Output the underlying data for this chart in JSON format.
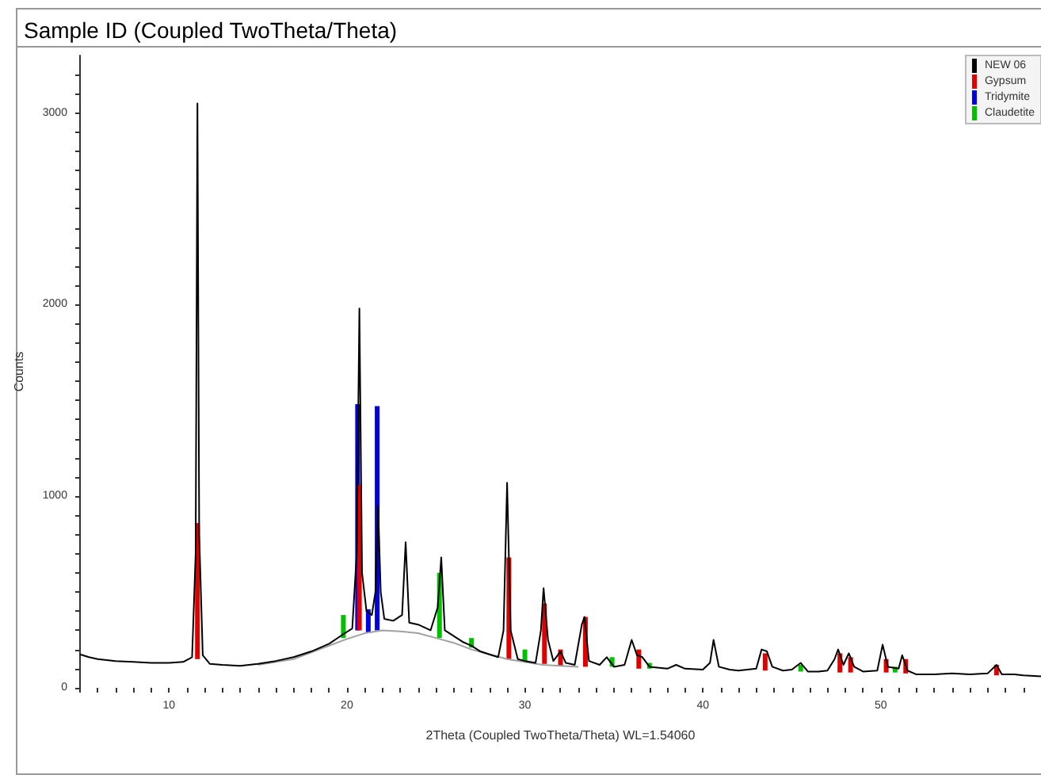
{
  "chart_data": {
    "type": "line",
    "title": "Sample ID (Coupled TwoTheta/Theta)",
    "xlabel": "2Theta (Coupled TwoTheta/Theta) WL=1.54060",
    "ylabel": "Counts",
    "xlim": [
      5,
      59
    ],
    "xticks": [
      {
        "value": 5,
        "label": null
      },
      {
        "value": 6,
        "label": null
      },
      {
        "value": 7,
        "label": null
      },
      {
        "value": 8,
        "label": null
      },
      {
        "value": 9,
        "label": null
      },
      10,
      {
        "value": 11,
        "label": null
      },
      {
        "value": 12,
        "label": null
      },
      {
        "value": 13,
        "label": null
      },
      {
        "value": 14,
        "label": null
      },
      {
        "value": 15,
        "label": null
      },
      {
        "value": 16,
        "label": null
      },
      {
        "value": 17,
        "label": null
      },
      {
        "value": 18,
        "label": null
      },
      {
        "value": 19,
        "label": null
      },
      20,
      {
        "value": 21,
        "label": null
      },
      {
        "value": 22,
        "label": null
      },
      {
        "value": 23,
        "label": null
      },
      {
        "value": 24,
        "label": null
      },
      {
        "value": 25,
        "label": null
      },
      {
        "value": 26,
        "label": null
      },
      {
        "value": 27,
        "label": null
      },
      {
        "value": 28,
        "label": null
      },
      {
        "value": 29,
        "label": null
      },
      30,
      {
        "value": 31,
        "label": null
      },
      {
        "value": 32,
        "label": null
      },
      {
        "value": 33,
        "label": null
      },
      {
        "value": 34,
        "label": null
      },
      {
        "value": 35,
        "label": null
      },
      {
        "value": 36,
        "label": null
      },
      {
        "value": 37,
        "label": null
      },
      {
        "value": 38,
        "label": null
      },
      {
        "value": 39,
        "label": null
      },
      40,
      {
        "value": 41,
        "label": null
      },
      {
        "value": 42,
        "label": null
      },
      {
        "value": 43,
        "label": null
      },
      {
        "value": 44,
        "label": null
      },
      {
        "value": 45,
        "label": null
      },
      {
        "value": 46,
        "label": null
      },
      {
        "value": 47,
        "label": null
      },
      {
        "value": 48,
        "label": null
      },
      {
        "value": 49,
        "label": null
      },
      50,
      {
        "value": 51,
        "label": null
      },
      {
        "value": 52,
        "label": null
      },
      {
        "value": 53,
        "label": null
      },
      {
        "value": 54,
        "label": null
      },
      {
        "value": 55,
        "label": null
      },
      {
        "value": 56,
        "label": null
      },
      {
        "value": 57,
        "label": null
      },
      {
        "value": 58,
        "label": null
      }
    ],
    "ylim": [
      0,
      3300
    ],
    "yticks": [
      0,
      {
        "value": 100,
        "label": null
      },
      {
        "value": 200,
        "label": null
      },
      {
        "value": 300,
        "label": null
      },
      {
        "value": 400,
        "label": null
      },
      {
        "value": 500,
        "label": null
      },
      {
        "value": 600,
        "label": null
      },
      {
        "value": 700,
        "label": null
      },
      {
        "value": 800,
        "label": null
      },
      {
        "value": 900,
        "label": null
      },
      1000,
      {
        "value": 1100,
        "label": null
      },
      {
        "value": 1200,
        "label": null
      },
      {
        "value": 1300,
        "label": null
      },
      {
        "value": 1400,
        "label": null
      },
      {
        "value": 1500,
        "label": null
      },
      {
        "value": 1600,
        "label": null
      },
      {
        "value": 1700,
        "label": null
      },
      {
        "value": 1800,
        "label": null
      },
      {
        "value": 1900,
        "label": null
      },
      2000,
      {
        "value": 2100,
        "label": null
      },
      {
        "value": 2200,
        "label": null
      },
      {
        "value": 2300,
        "label": null
      },
      {
        "value": 2400,
        "label": null
      },
      {
        "value": 2500,
        "label": null
      },
      {
        "value": 2600,
        "label": null
      },
      {
        "value": 2700,
        "label": null
      },
      {
        "value": 2800,
        "label": null
      },
      {
        "value": 2900,
        "label": null
      },
      3000,
      {
        "value": 3100,
        "label": null
      },
      {
        "value": 3200,
        "label": null
      }
    ],
    "grid": false,
    "legend": "top right",
    "marker": "none",
    "series": [
      {
        "color": "#a0a0a0",
        "x": [
          15,
          17,
          19,
          20,
          21,
          22,
          23,
          24,
          25,
          26,
          27,
          28,
          29,
          31,
          33
        ],
        "values": [
          120,
          150,
          220,
          255,
          285,
          300,
          295,
          285,
          260,
          235,
          200,
          175,
          150,
          120,
          110
        ]
      },
      {
        "type": "bar",
        "name": "Gypsum",
        "color": "#e00000",
        "x": [
          11.6,
          20.7,
          29.1,
          31.1,
          32.0,
          33.4,
          36.4,
          43.5,
          47.7,
          48.3,
          50.3,
          51.4,
          56.5
        ],
        "base": [
          150,
          300,
          150,
          125,
          115,
          110,
          100,
          90,
          80,
          80,
          80,
          75,
          65
        ],
        "values": [
          710,
          760,
          530,
          315,
          85,
          260,
          100,
          90,
          100,
          80,
          70,
          75,
          55
        ]
      },
      {
        "type": "bar",
        "name": "Tridymite",
        "color": "#0000e0",
        "x": [
          20.6,
          21.2,
          21.7
        ],
        "base": [
          300,
          290,
          300
        ],
        "values": [
          1180,
          120,
          1170
        ]
      },
      {
        "type": "bar",
        "name": "Claudetite",
        "color": "#00c000",
        "x": [
          19.8,
          25.2,
          27.0,
          30.0,
          34.9,
          37.0,
          45.5,
          50.8
        ],
        "base": [
          260,
          260,
          210,
          140,
          110,
          100,
          85,
          80
        ],
        "values": [
          120,
          340,
          50,
          60,
          50,
          30,
          35,
          30
        ]
      },
      {
        "type": "line",
        "name": "NEW 06",
        "color": "#000000",
        "x": [
          5,
          5.5,
          6,
          6.5,
          7,
          8,
          9,
          10,
          10.8,
          11.3,
          11.5,
          11.6,
          11.7,
          11.9,
          12.3,
          13,
          14,
          15,
          16,
          17,
          18,
          19,
          19.8,
          20.3,
          20.55,
          20.7,
          20.85,
          21.1,
          21.4,
          21.6,
          21.75,
          21.9,
          22.1,
          22.6,
          23.1,
          23.3,
          23.5,
          24,
          24.7,
          25.1,
          25.3,
          25.5,
          26,
          26.5,
          27,
          27.5,
          28,
          28.5,
          28.8,
          29.0,
          29.2,
          29.6,
          30,
          30.6,
          30.9,
          31.05,
          31.3,
          31.6,
          32,
          32.3,
          32.8,
          33.2,
          33.35,
          33.6,
          34.2,
          34.6,
          35,
          35.6,
          36,
          36.3,
          36.6,
          37,
          38,
          38.5,
          39,
          40,
          40.4,
          40.6,
          40.9,
          41.5,
          42,
          43,
          43.3,
          43.6,
          43.9,
          44.5,
          45,
          45.5,
          45.9,
          46.5,
          47,
          47.4,
          47.6,
          47.9,
          48.2,
          48.5,
          49,
          49.8,
          50.1,
          50.4,
          51,
          51.2,
          51.5,
          52,
          53,
          54,
          55,
          56,
          56.5,
          56.8,
          57.5,
          58,
          59
        ],
        "values": [
          175,
          160,
          150,
          145,
          140,
          135,
          130,
          130,
          135,
          160,
          700,
          3050,
          800,
          170,
          125,
          120,
          115,
          125,
          140,
          160,
          190,
          230,
          280,
          310,
          700,
          1980,
          600,
          400,
          380,
          500,
          950,
          500,
          360,
          350,
          380,
          760,
          340,
          330,
          300,
          420,
          680,
          300,
          270,
          240,
          220,
          190,
          175,
          160,
          300,
          1070,
          300,
          150,
          140,
          130,
          300,
          520,
          250,
          140,
          190,
          130,
          120,
          330,
          370,
          140,
          120,
          160,
          110,
          120,
          250,
          170,
          160,
          110,
          100,
          120,
          100,
          95,
          130,
          250,
          110,
          95,
          90,
          100,
          200,
          190,
          110,
          90,
          95,
          130,
          85,
          85,
          90,
          150,
          200,
          120,
          180,
          110,
          85,
          90,
          225,
          110,
          100,
          170,
          90,
          70,
          70,
          75,
          70,
          75,
          120,
          70,
          70,
          65,
          60
        ]
      }
    ]
  }
}
